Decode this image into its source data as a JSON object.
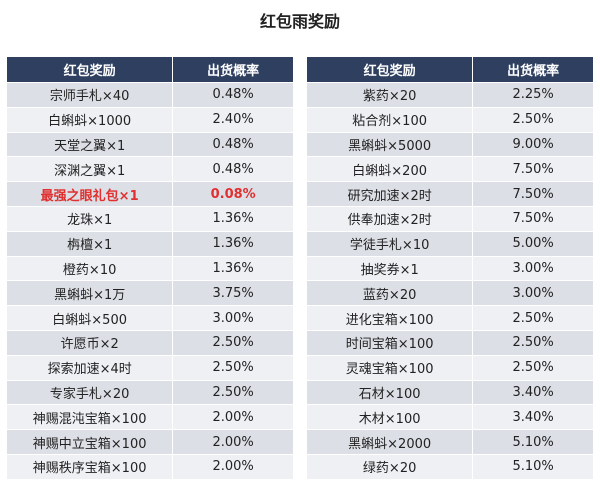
{
  "title": "红包雨奖励",
  "headers": {
    "name": "红包奖励",
    "rate": "出货概率"
  },
  "highlight_color": "#e03030",
  "left_rows": [
    {
      "name": "宗师手札×40",
      "rate": "0.48%"
    },
    {
      "name": "白蝌蚪×1000",
      "rate": "2.40%"
    },
    {
      "name": "天堂之翼×1",
      "rate": "0.48%"
    },
    {
      "name": "深渊之翼×1",
      "rate": "0.48%"
    },
    {
      "name": "最强之眼礼包×1",
      "rate": "0.08%",
      "highlight": true
    },
    {
      "name": "龙珠×1",
      "rate": "1.36%"
    },
    {
      "name": "栴檀×1",
      "rate": "1.36%"
    },
    {
      "name": "橙药×10",
      "rate": "1.36%"
    },
    {
      "name": "黑蝌蚪×1万",
      "rate": "3.75%"
    },
    {
      "name": "白蝌蚪×500",
      "rate": "3.00%"
    },
    {
      "name": "许愿币×2",
      "rate": "2.50%"
    },
    {
      "name": "探索加速×4时",
      "rate": "2.50%"
    },
    {
      "name": "专家手札×20",
      "rate": "2.50%"
    },
    {
      "name": "神赐混沌宝箱×100",
      "rate": "2.00%"
    },
    {
      "name": "神赐中立宝箱×100",
      "rate": "2.00%"
    },
    {
      "name": "神赐秩序宝箱×100",
      "rate": "2.00%"
    }
  ],
  "right_rows": [
    {
      "name": "紫药×20",
      "rate": "2.25%"
    },
    {
      "name": "粘合剂×100",
      "rate": "2.50%"
    },
    {
      "name": "黑蝌蚪×5000",
      "rate": "9.00%"
    },
    {
      "name": "白蝌蚪×200",
      "rate": "7.50%"
    },
    {
      "name": "研究加速×2时",
      "rate": "7.50%"
    },
    {
      "name": "供奉加速×2时",
      "rate": "7.50%"
    },
    {
      "name": "学徒手札×10",
      "rate": "5.00%"
    },
    {
      "name": "抽奖券×1",
      "rate": "3.00%"
    },
    {
      "name": "蓝药×20",
      "rate": "3.00%"
    },
    {
      "name": "进化宝箱×100",
      "rate": "2.50%"
    },
    {
      "name": "时间宝箱×100",
      "rate": "2.50%"
    },
    {
      "name": "灵魂宝箱×100",
      "rate": "2.50%"
    },
    {
      "name": "石材×100",
      "rate": "3.40%"
    },
    {
      "name": "木材×100",
      "rate": "3.40%"
    },
    {
      "name": "黑蝌蚪×2000",
      "rate": "5.10%"
    },
    {
      "name": "绿药×20",
      "rate": "5.10%"
    }
  ]
}
